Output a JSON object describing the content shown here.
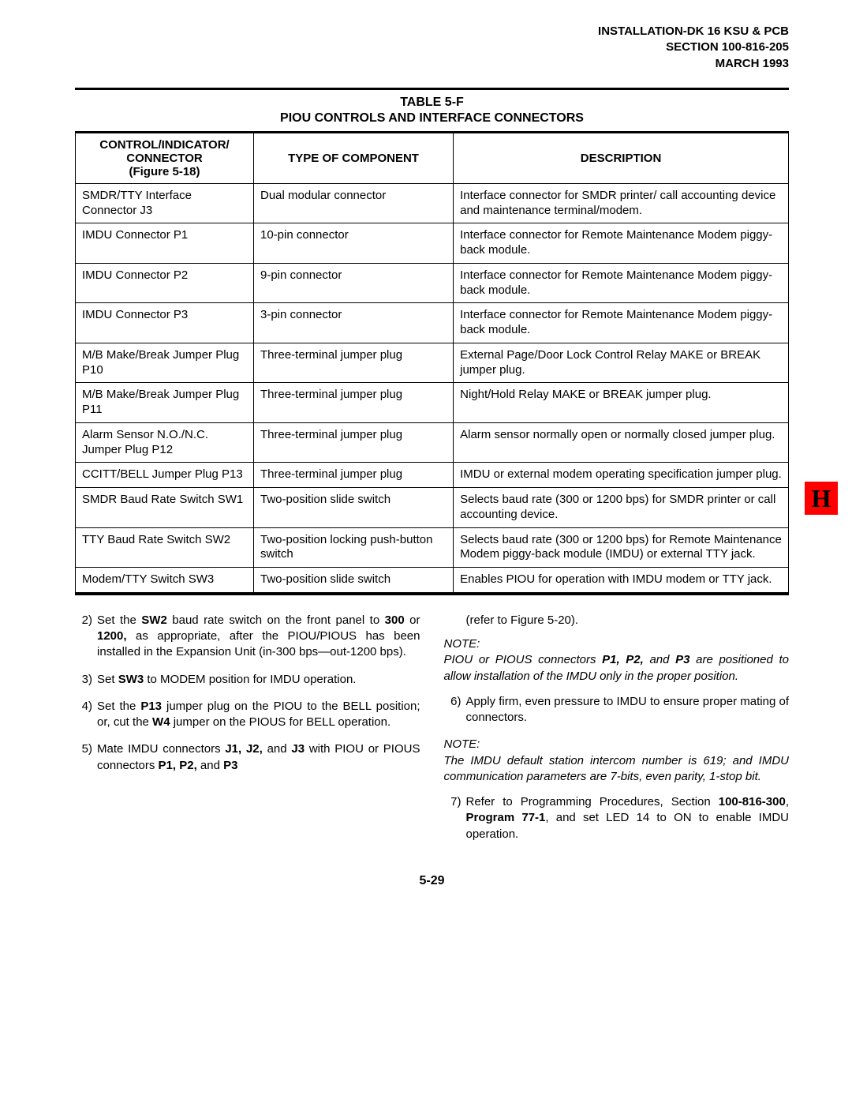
{
  "header": {
    "line1": "INSTALLATION-DK 16 KSU & PCB",
    "line2": "SECTION 100-816-205",
    "line3": "MARCH 1993"
  },
  "side_tab": {
    "letter": "H",
    "bg": "#ff0000"
  },
  "table": {
    "title_line1": "TABLE 5-F",
    "title_line2": "PIOU CONTROLS AND INTERFACE CONNECTORS",
    "columns": [
      {
        "line1": "CONTROL/INDICATOR/",
        "line2": "CONNECTOR",
        "line3": "(Figure 5-18)"
      },
      {
        "line1": "TYPE OF COMPONENT"
      },
      {
        "line1": "DESCRIPTION"
      }
    ],
    "rows": [
      [
        "SMDR/TTY Interface Connector J3",
        "Dual modular connector",
        "Interface connector for SMDR printer/ call accounting device and maintenance terminal/modem."
      ],
      [
        "IMDU Connector P1",
        "10-pin connector",
        "Interface connector for Remote Maintenance Modem piggy-back module."
      ],
      [
        "IMDU Connector P2",
        "9-pin connector",
        "Interface connector for Remote Maintenance Modem piggy-back module."
      ],
      [
        "IMDU Connector P3",
        "3-pin connector",
        "Interface connector for Remote Maintenance Modem piggy-back module."
      ],
      [
        "M/B Make/Break Jumper Plug P10",
        "Three-terminal jumper plug",
        "External Page/Door Lock Control Relay MAKE or BREAK jumper plug."
      ],
      [
        "M/B Make/Break Jumper Plug P11",
        "Three-terminal jumper plug",
        "Night/Hold Relay MAKE or BREAK jumper plug."
      ],
      [
        "Alarm Sensor N.O./N.C. Jumper Plug P12",
        "Three-terminal jumper plug",
        "Alarm sensor normally open or normally closed jumper plug."
      ],
      [
        "CCITT/BELL Jumper Plug P13",
        "Three-terminal jumper plug",
        "IMDU or external modem operating specification jumper plug."
      ],
      [
        "SMDR Baud Rate Switch SW1",
        "Two-position slide switch",
        "Selects baud rate (300 or 1200 bps) for SMDR printer or call accounting device."
      ],
      [
        "TTY Baud Rate Switch SW2",
        "Two-position locking push-button switch",
        "Selects baud rate (300 or 1200 bps) for Remote Maintenance Modem piggy-back module (IMDU) or external TTY jack."
      ],
      [
        "Modem/TTY Switch SW3",
        "Two-position slide switch",
        "Enables PIOU for operation with IMDU modem or TTY jack."
      ]
    ]
  },
  "left_col": {
    "items": [
      {
        "num": "2)",
        "html": "Set the <b>SW2</b> baud rate switch on the front panel to <b>300</b> or <b>1200,</b> as appropriate, after the PIOU/PIOUS has been installed in the Expansion Unit (in-300 bps—out-1200 bps)."
      },
      {
        "num": "3)",
        "html": "Set <b>SW3</b> to MODEM position for IMDU operation."
      },
      {
        "num": "4)",
        "html": "Set the <b>P13</b> jumper plug on the PIOU to the BELL position; or, cut the <b>W4</b> jumper on the PIOUS for BELL operation."
      },
      {
        "num": "5)",
        "html": "Mate IMDU connectors <b>J1, J2,</b> and <b>J3</b> with PIOU or PIOUS connectors <b>P1, P2,</b> and <b>P3</b>"
      }
    ]
  },
  "right_col": {
    "lead": "(refer to Figure 5-20).",
    "note1_label": "NOTE:",
    "note1_body": "PIOU or PIOUS connectors <b>P1, P2,</b> and <b>P3</b> are positioned to allow installation of the IMDU only in the proper position.",
    "items_a": [
      {
        "num": "6)",
        "html": "Apply firm, even pressure to IMDU to ensure proper mating of connectors."
      }
    ],
    "note2_label": "NOTE:",
    "note2_body": "The IMDU default station intercom number is 619; and IMDU communication parameters are 7-bits, even parity, 1-stop bit.",
    "items_b": [
      {
        "num": "7)",
        "html": "Refer to Programming Procedures, Section <b>100-816-300</b>, <b>Program 77-1</b>, and set LED 14 to ON to enable IMDU operation."
      }
    ]
  },
  "page_number": "5-29"
}
